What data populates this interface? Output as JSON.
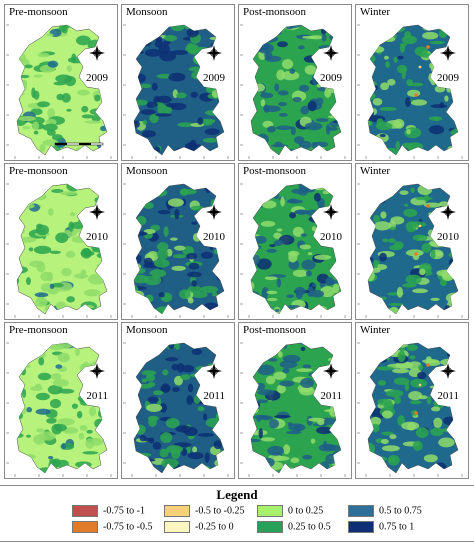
{
  "figure": {
    "rows": [
      {
        "year": "2009"
      },
      {
        "year": "2010"
      },
      {
        "year": "2011"
      }
    ],
    "seasons": [
      {
        "name": "Pre-monsoon",
        "main": "#b6f27c",
        "c2": "#2ca44f",
        "c3": "#8fdc6a",
        "c4": "#1f6c8d"
      },
      {
        "name": "Monsoon",
        "main": "#1f5f86",
        "c2": "#0d2f73",
        "c3": "#2ca44f",
        "c4": "#8fdc6a"
      },
      {
        "name": "Post-monsoon",
        "main": "#2ca44f",
        "c2": "#1f5f86",
        "c3": "#8fdc6a",
        "c4": "#0d2f73"
      },
      {
        "name": "Winter",
        "main": "#1f6a8c",
        "c2": "#2ca44f",
        "c3": "#8fdc6a",
        "c4": "#0d2f73"
      }
    ]
  },
  "legend": {
    "title": "Legend",
    "items": [
      {
        "label": "-0.75 to -1",
        "color": "#c0504d"
      },
      {
        "label": "-0.5 to -0.25",
        "color": "#f7d07a"
      },
      {
        "label": "0 to 0.25",
        "color": "#a6f06c"
      },
      {
        "label": "0.5 to 0.75",
        "color": "#2d6f99"
      },
      {
        "label": "-0.75 to -0.5",
        "color": "#e07b2a"
      },
      {
        "label": "-0.25 to 0",
        "color": "#fbf5c2"
      },
      {
        "label": "0.25 to 0.5",
        "color": "#28a05a"
      },
      {
        "label": "0.75 to 1",
        "color": "#0e2f74"
      }
    ]
  }
}
